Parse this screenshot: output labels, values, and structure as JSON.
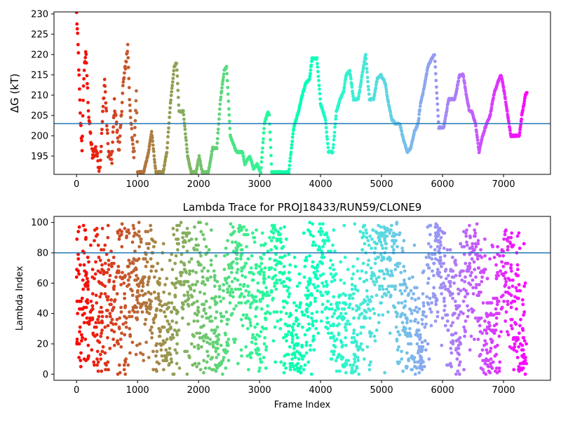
{
  "chart_data": [
    {
      "type": "scatter",
      "title": "",
      "xlabel": "",
      "ylabel": "ΔG (kT)",
      "xlim": [
        -370,
        7770
      ],
      "ylim": [
        190.5,
        230.5
      ],
      "xticks": [
        0,
        1000,
        2000,
        3000,
        4000,
        5000,
        6000,
        7000
      ],
      "yticks": [
        195,
        200,
        205,
        210,
        215,
        220,
        225,
        230
      ],
      "hline": 203.0,
      "hline_color": "#1f77b4",
      "colormap": "rainbow (red at frame 0 to violet at final frame)",
      "trace_keypoints": [
        [
          0,
          230
        ],
        [
          30,
          220
        ],
        [
          60,
          205
        ],
        [
          90,
          197
        ],
        [
          120,
          215
        ],
        [
          150,
          221
        ],
        [
          200,
          205
        ],
        [
          260,
          195
        ],
        [
          320,
          197
        ],
        [
          380,
          191
        ],
        [
          460,
          214
        ],
        [
          520,
          196
        ],
        [
          580,
          194
        ],
        [
          620,
          208
        ],
        [
          700,
          196
        ],
        [
          760,
          212
        ],
        [
          840,
          222
        ],
        [
          880,
          205
        ],
        [
          940,
          195
        ],
        [
          980,
          212
        ],
        [
          1000,
          191
        ],
        [
          1100,
          191
        ],
        [
          1180,
          196
        ],
        [
          1230,
          201
        ],
        [
          1300,
          191
        ],
        [
          1420,
          191
        ],
        [
          1480,
          196
        ],
        [
          1540,
          208
        ],
        [
          1600,
          217
        ],
        [
          1640,
          218
        ],
        [
          1680,
          206
        ],
        [
          1750,
          206
        ],
        [
          1820,
          195
        ],
        [
          1880,
          191
        ],
        [
          1960,
          191
        ],
        [
          2010,
          195
        ],
        [
          2060,
          191
        ],
        [
          2160,
          191
        ],
        [
          2230,
          197
        ],
        [
          2300,
          197
        ],
        [
          2360,
          209
        ],
        [
          2420,
          216
        ],
        [
          2460,
          217
        ],
        [
          2520,
          200
        ],
        [
          2620,
          196
        ],
        [
          2720,
          196
        ],
        [
          2760,
          193
        ],
        [
          2840,
          195
        ],
        [
          2900,
          192
        ],
        [
          2960,
          193
        ],
        [
          3020,
          191
        ],
        [
          3080,
          203
        ],
        [
          3140,
          206
        ],
        [
          3160,
          205
        ],
        [
          3200,
          191
        ],
        [
          3300,
          191
        ],
        [
          3400,
          191
        ],
        [
          3480,
          191
        ],
        [
          3560,
          202
        ],
        [
          3640,
          206
        ],
        [
          3700,
          210
        ],
        [
          3760,
          213
        ],
        [
          3820,
          214
        ],
        [
          3860,
          219
        ],
        [
          3940,
          219
        ],
        [
          4000,
          208
        ],
        [
          4080,
          204
        ],
        [
          4130,
          196
        ],
        [
          4200,
          196
        ],
        [
          4260,
          206
        ],
        [
          4320,
          209
        ],
        [
          4380,
          211
        ],
        [
          4420,
          215
        ],
        [
          4480,
          216
        ],
        [
          4540,
          209
        ],
        [
          4620,
          209
        ],
        [
          4680,
          215
        ],
        [
          4740,
          220
        ],
        [
          4800,
          209
        ],
        [
          4870,
          209
        ],
        [
          4930,
          214
        ],
        [
          4990,
          215
        ],
        [
          5060,
          213
        ],
        [
          5100,
          209
        ],
        [
          5170,
          204
        ],
        [
          5230,
          203
        ],
        [
          5300,
          203
        ],
        [
          5360,
          199
        ],
        [
          5420,
          196
        ],
        [
          5480,
          197
        ],
        [
          5540,
          201
        ],
        [
          5600,
          203
        ],
        [
          5640,
          208
        ],
        [
          5700,
          212
        ],
        [
          5760,
          217
        ],
        [
          5820,
          219
        ],
        [
          5870,
          220
        ],
        [
          5900,
          212
        ],
        [
          5940,
          202
        ],
        [
          6020,
          202
        ],
        [
          6100,
          209
        ],
        [
          6200,
          209
        ],
        [
          6280,
          215
        ],
        [
          6340,
          215
        ],
        [
          6380,
          211
        ],
        [
          6440,
          206
        ],
        [
          6480,
          206
        ],
        [
          6540,
          203
        ],
        [
          6600,
          196
        ],
        [
          6640,
          199
        ],
        [
          6700,
          202
        ],
        [
          6780,
          205
        ],
        [
          6840,
          210
        ],
        [
          6900,
          213
        ],
        [
          6960,
          215
        ],
        [
          7000,
          212
        ],
        [
          7060,
          206
        ],
        [
          7120,
          200
        ],
        [
          7180,
          200
        ],
        [
          7260,
          200
        ],
        [
          7300,
          205
        ],
        [
          7360,
          210
        ],
        [
          7390,
          211
        ]
      ]
    },
    {
      "type": "scatter",
      "title": "Lambda Trace for PROJ18433/RUN59/CLONE9",
      "xlabel": "Frame Index",
      "ylabel": "Lambda Index",
      "xlim": [
        -370,
        7770
      ],
      "ylim": [
        -4,
        104
      ],
      "xticks": [
        0,
        1000,
        2000,
        3000,
        4000,
        5000,
        6000,
        7000
      ],
      "yticks": [
        0,
        20,
        40,
        60,
        80,
        100
      ],
      "hline": 80,
      "hline_color": "#1f77b4",
      "colormap": "rainbow (red at frame 0 to violet at final frame)",
      "density_centers": [
        [
          0,
          50
        ],
        [
          150,
          50
        ],
        [
          400,
          45
        ],
        [
          600,
          45
        ],
        [
          800,
          50
        ],
        [
          1000,
          55
        ],
        [
          1200,
          55
        ],
        [
          1400,
          30
        ],
        [
          1550,
          25
        ],
        [
          1700,
          70
        ],
        [
          1900,
          60
        ],
        [
          2050,
          50
        ],
        [
          2200,
          30
        ],
        [
          2400,
          20
        ],
        [
          2550,
          70
        ],
        [
          2700,
          70
        ],
        [
          2850,
          50
        ],
        [
          3000,
          40
        ],
        [
          3200,
          70
        ],
        [
          3350,
          70
        ],
        [
          3550,
          15
        ],
        [
          3700,
          20
        ],
        [
          3850,
          70
        ],
        [
          4000,
          85
        ],
        [
          4150,
          60
        ],
        [
          4300,
          20
        ],
        [
          4450,
          40
        ],
        [
          4600,
          20
        ],
        [
          4750,
          60
        ],
        [
          4900,
          70
        ],
        [
          5050,
          75
        ],
        [
          5200,
          85
        ],
        [
          5350,
          40
        ],
        [
          5500,
          20
        ],
        [
          5650,
          15
        ],
        [
          5800,
          70
        ],
        [
          5950,
          85
        ],
        [
          6100,
          40
        ],
        [
          6250,
          30
        ],
        [
          6400,
          80
        ],
        [
          6550,
          75
        ],
        [
          6700,
          25
        ],
        [
          6850,
          20
        ],
        [
          7000,
          70
        ],
        [
          7150,
          60
        ],
        [
          7300,
          20
        ],
        [
          7380,
          30
        ]
      ]
    }
  ]
}
